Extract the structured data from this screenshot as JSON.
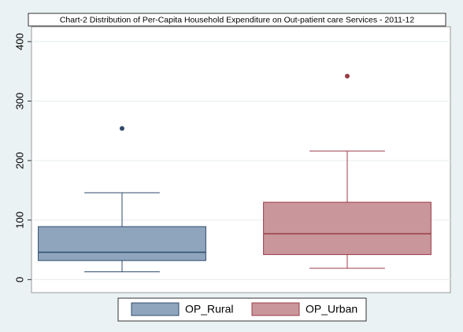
{
  "chart_data": {
    "type": "box",
    "title": "Chart-2 Distribution of Per-Capita Household Expenditure on Out-patient care Services - 2011-12",
    "series": [
      {
        "name": "OP_Rural",
        "color": "#8fa5be",
        "edge": "#2f4b6a",
        "whisker_low": 13,
        "q1": 32,
        "median": 46,
        "q3": 89,
        "whisker_high": 146,
        "outliers": [
          254
        ]
      },
      {
        "name": "OP_Urban",
        "color": "#c9969b",
        "edge": "#9a3c47",
        "whisker_low": 19,
        "q1": 42,
        "median": 77,
        "q3": 130,
        "whisker_high": 216,
        "outliers": [
          342
        ]
      }
    ],
    "ylim": [
      -22,
      425
    ],
    "yticks": [
      0,
      100,
      200,
      300,
      400
    ],
    "grid": true
  }
}
